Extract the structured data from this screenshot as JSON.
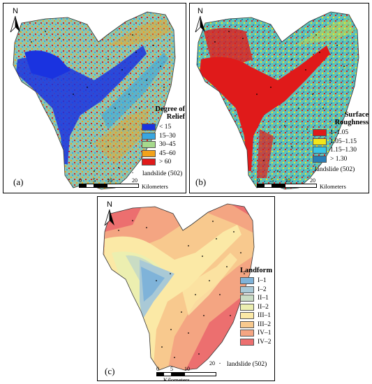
{
  "north_symbol": "N",
  "scale_ticks": [
    "0",
    "5",
    "10",
    "20"
  ],
  "scale_unit": "Kilometers",
  "landslide_label": "landslide (502)",
  "panels": {
    "a": {
      "label": "(a)",
      "legend_title_1": "Degree of",
      "legend_title_2": "Relief",
      "classes": [
        {
          "label": "< 15",
          "color": "#1a33e0"
        },
        {
          "label": "15–30",
          "color": "#39a6e0"
        },
        {
          "label": "30–45",
          "color": "#a6d98c"
        },
        {
          "label": "45–60",
          "color": "#f2a21a"
        },
        {
          "label": "> 60",
          "color": "#e01a1a"
        }
      ]
    },
    "b": {
      "label": "(b)",
      "legend_title_1": "Surface",
      "legend_title_2": "Roughness",
      "classes": [
        {
          "label": "1–1.05",
          "color": "#e01a1a"
        },
        {
          "label": "1.05–1.15",
          "color": "#f2e61a"
        },
        {
          "label": "1.15–1.30",
          "color": "#39c6e6"
        },
        {
          "label": "> 1.30",
          "color": "#2a7fb8"
        }
      ]
    },
    "c": {
      "label": "(c)",
      "legend_title": "Landform",
      "classes": [
        {
          "label": "I–1",
          "color": "#7fb3d9"
        },
        {
          "label": "I–2",
          "color": "#a9c9d6"
        },
        {
          "label": "II–1",
          "color": "#c9dcc4"
        },
        {
          "label": "II–2",
          "color": "#ecefb0"
        },
        {
          "label": "III–1",
          "color": "#fbe9a6"
        },
        {
          "label": "III–2",
          "color": "#f8c98e"
        },
        {
          "label": "IV–1",
          "color": "#f4a582"
        },
        {
          "label": "IV–2",
          "color": "#ec6f6f"
        }
      ]
    }
  }
}
